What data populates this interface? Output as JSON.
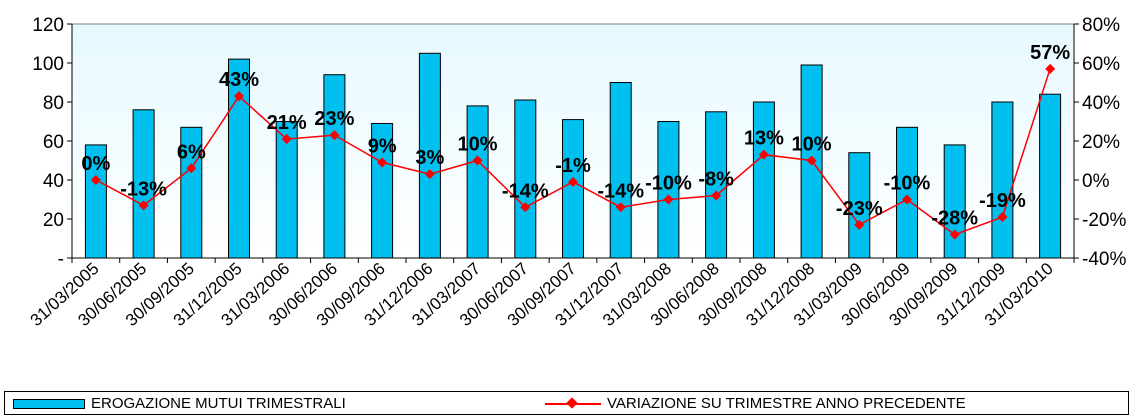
{
  "chart_data": {
    "type": "bar",
    "categories": [
      "31/03/2005",
      "30/06/2005",
      "30/09/2005",
      "31/12/2005",
      "31/03/2006",
      "30/06/2006",
      "30/09/2006",
      "31/12/2006",
      "31/03/2007",
      "30/06/2007",
      "30/09/2007",
      "31/12/2007",
      "31/03/2008",
      "30/06/2008",
      "30/09/2008",
      "31/12/2008",
      "31/03/2009",
      "30/06/2009",
      "30/09/2009",
      "31/12/2009",
      "31/03/2010"
    ],
    "series": [
      {
        "name": "EROGAZIONE MUTUI TRIMESTRALI",
        "type": "bar",
        "axis": "left",
        "values": [
          58,
          76,
          67,
          102,
          70,
          94,
          69,
          105,
          78,
          81,
          71,
          90,
          70,
          75,
          80,
          99,
          54,
          67,
          58,
          80,
          84
        ]
      },
      {
        "name": "VARIAZIONE SU TRIMESTRE ANNO PRECEDENTE",
        "type": "line",
        "axis": "right",
        "values": [
          0,
          -13,
          6,
          43,
          21,
          23,
          9,
          3,
          10,
          -14,
          -1,
          -14,
          -10,
          -8,
          13,
          10,
          -23,
          -10,
          -28,
          -19,
          57
        ],
        "labels": [
          "0%",
          "-13%",
          "6%",
          "43%",
          "21%",
          "23%",
          "9%",
          "3%",
          "10%",
          "-14%",
          "-1%",
          "-14%",
          "-10%",
          "-8%",
          "13%",
          "10%",
          "-23%",
          "-10%",
          "-28%",
          "-19%",
          "57%"
        ]
      }
    ],
    "y_left": {
      "min": 0,
      "max": 120,
      "ticks": [
        0,
        20,
        40,
        60,
        80,
        100,
        120
      ],
      "tick_labels": [
        "-",
        "20",
        "40",
        "60",
        "80",
        "100",
        "120"
      ]
    },
    "y_right": {
      "min": -40,
      "max": 80,
      "ticks": [
        -40,
        -20,
        0,
        20,
        40,
        60,
        80
      ],
      "tick_labels": [
        "-40%",
        "-20%",
        "0%",
        "20%",
        "40%",
        "60%",
        "80%"
      ]
    },
    "grid": false,
    "legend": "bottom",
    "colors": {
      "bar": "#00c0f0",
      "line": "#ff0000",
      "plot_bg_top": "#e6f9ff",
      "plot_bg_bottom": "#ffffff"
    }
  }
}
